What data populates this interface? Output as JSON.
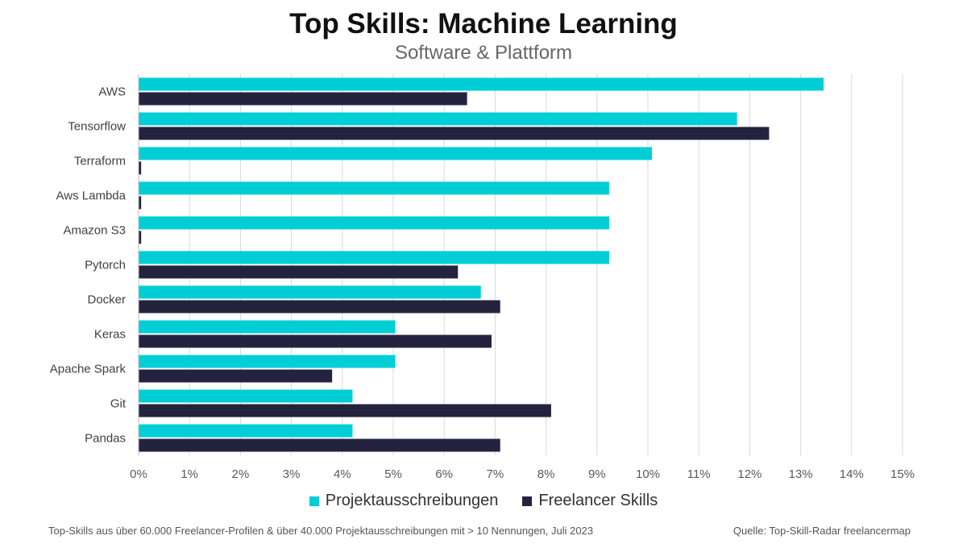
{
  "title": "Top Skills: Machine Learning",
  "subtitle": "Software & Plattform",
  "footnote": "Top-Skills aus über 60.000 Freelancer-Profilen & über 40.000 Projektausschreibungen mit > 10 Nennungen, Juli 2023",
  "source": "Quelle: Top-Skill-Radar freelancermap",
  "chart_data": {
    "type": "bar",
    "orientation": "horizontal",
    "title": "Top Skills: Machine Learning",
    "subtitle": "Software & Plattform",
    "categories": [
      "AWS",
      "Tensorflow",
      "Terraform",
      "Aws Lambda",
      "Amazon S3",
      "Pytorch",
      "Docker",
      "Keras",
      "Apache Spark",
      "Git",
      "Pandas"
    ],
    "series": [
      {
        "name": "Projektausschreibungen",
        "color": "#00CED6",
        "values": [
          13.45,
          11.75,
          10.08,
          9.24,
          9.24,
          9.24,
          6.72,
          5.04,
          5.04,
          4.2,
          4.2
        ]
      },
      {
        "name": "Freelancer Skills",
        "color": "#23233F",
        "values": [
          6.45,
          12.38,
          0.05,
          0.05,
          0.05,
          6.27,
          7.1,
          6.93,
          3.8,
          8.1,
          7.1
        ]
      }
    ],
    "xlim": [
      0,
      15
    ],
    "xticks": [
      "0%",
      "1%",
      "2%",
      "3%",
      "4%",
      "5%",
      "6%",
      "7%",
      "8%",
      "9%",
      "10%",
      "11%",
      "12%",
      "13%",
      "14%",
      "15%"
    ],
    "grid": true,
    "legend": "bottom"
  }
}
